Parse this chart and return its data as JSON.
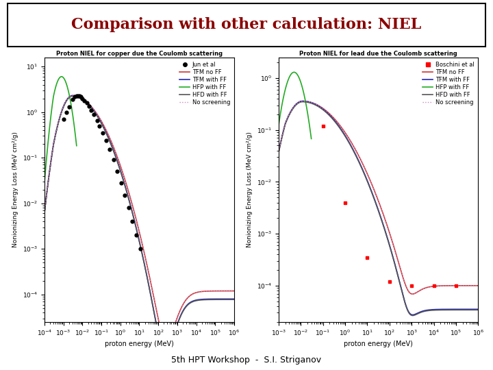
{
  "title": "Comparison with other calculation: NIEL",
  "title_color": "#8B0000",
  "title_fontsize": 16,
  "footer_text": "5th HPT Workshop  -  S.I. Striganov",
  "footer_fontsize": 9,
  "bg_color": "#FFFFFF",
  "plot1": {
    "xlabel": "proton energy (MeV)",
    "ylabel": "Nonionizing Energy Loss (MeV cm²/g)",
    "caption": "Proton NIEL for copper due the Coulomb scattering",
    "xlim_log": [
      -4,
      6
    ],
    "ylim_log": [
      -4.6,
      1.2
    ],
    "legend_data_label": "Jun et al",
    "legend_entries": [
      "TFM no FF",
      "TFM with FF",
      "HFP with FF",
      "HFD with FF",
      "No screening"
    ],
    "legend_colors": [
      "#CC3333",
      "#2222BB",
      "#22AA22",
      "#555555",
      "#CC88BB"
    ],
    "legend_styles": [
      "-",
      "-",
      "-",
      "-",
      ":"
    ],
    "jun_energies": [
      0.001,
      0.0015,
      0.002,
      0.003,
      0.004,
      0.005,
      0.006,
      0.007,
      0.008,
      0.01,
      0.013,
      0.017,
      0.022,
      0.03,
      0.04,
      0.06,
      0.08,
      0.12,
      0.18,
      0.28,
      0.45,
      0.7,
      1.1,
      1.7,
      2.7,
      4.3,
      7.0,
      11.0
    ],
    "jun_niel": [
      0.7,
      1.0,
      1.3,
      1.9,
      2.2,
      2.3,
      2.3,
      2.3,
      2.2,
      2.0,
      1.8,
      1.6,
      1.35,
      1.1,
      0.9,
      0.65,
      0.5,
      0.35,
      0.24,
      0.15,
      0.09,
      0.05,
      0.028,
      0.015,
      0.008,
      0.004,
      0.002,
      0.001
    ]
  },
  "plot2": {
    "xlabel": "proton energy (MeV)",
    "ylabel": "Nonionizing Energy Loss (MeV cm²/g)",
    "caption": "Proton NIEL for lead due the Coulomb scattering",
    "xlim_log": [
      -3,
      6
    ],
    "ylim_log": [
      -4.7,
      0.4
    ],
    "legend_data_label": "Boschini et al",
    "legend_entries": [
      "TFM no FF",
      "TFM with FF",
      "HFP with FF",
      "HFD with FF",
      "No screening"
    ],
    "legend_colors": [
      "#CC3333",
      "#2222BB",
      "#22AA22",
      "#555555",
      "#CC88BB"
    ],
    "legend_styles": [
      "-",
      "-",
      "-",
      "-",
      ":"
    ],
    "boschini_energies": [
      0.1,
      1.0,
      10.0,
      100.0,
      1000.0,
      10000.0,
      100000.0
    ],
    "boschini_niel": [
      0.12,
      0.004,
      0.00035,
      0.00012,
      0.0001,
      0.0001,
      0.0001
    ]
  }
}
